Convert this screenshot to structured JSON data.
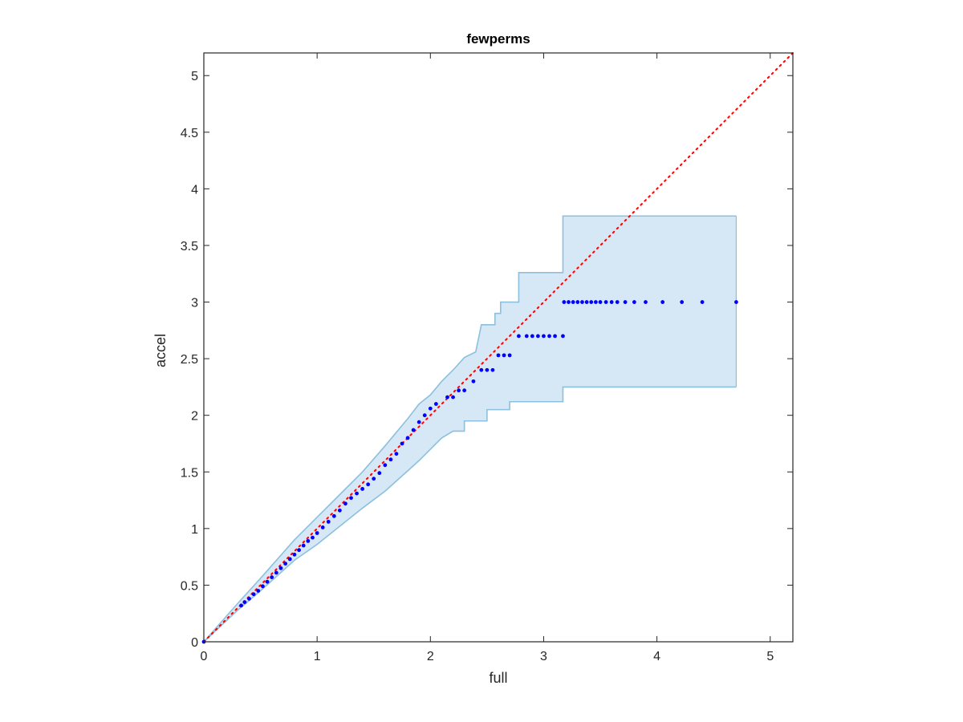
{
  "chart_data": {
    "type": "scatter",
    "title": "fewperms",
    "xlabel": "full",
    "ylabel": "accel",
    "xlim": [
      0,
      5.2
    ],
    "ylim": [
      0,
      5.2
    ],
    "xticks": [
      0,
      1,
      2,
      3,
      4,
      5
    ],
    "yticks": [
      0,
      0.5,
      1,
      1.5,
      2,
      2.5,
      3,
      3.5,
      4,
      4.5,
      5
    ],
    "xtick_labels": [
      "0",
      "1",
      "2",
      "3",
      "4",
      "5"
    ],
    "ytick_labels": [
      "0",
      "0.5",
      "1",
      "1.5",
      "2",
      "2.5",
      "3",
      "3.5",
      "4",
      "4.5",
      "5"
    ],
    "grid": false,
    "reference_line": {
      "from": [
        0,
        0
      ],
      "to": [
        5.2,
        5.2
      ],
      "style": "dotted",
      "color": "#ff0000"
    },
    "band": {
      "color": "#d6e8f5",
      "edge_color": "#8cc0dd",
      "upper": [
        [
          0,
          0
        ],
        [
          0.3,
          0.34
        ],
        [
          0.5,
          0.56
        ],
        [
          0.8,
          0.9
        ],
        [
          1.0,
          1.1
        ],
        [
          1.2,
          1.3
        ],
        [
          1.4,
          1.5
        ],
        [
          1.6,
          1.73
        ],
        [
          1.8,
          1.97
        ],
        [
          1.9,
          2.1
        ],
        [
          2.0,
          2.18
        ],
        [
          2.1,
          2.3
        ],
        [
          2.2,
          2.4
        ],
        [
          2.3,
          2.51
        ],
        [
          2.4,
          2.56
        ],
        [
          2.45,
          2.8
        ],
        [
          2.57,
          2.8
        ],
        [
          2.57,
          2.9
        ],
        [
          2.62,
          2.9
        ],
        [
          2.62,
          3.0
        ],
        [
          2.78,
          3.0
        ],
        [
          2.78,
          3.26
        ],
        [
          3.17,
          3.26
        ],
        [
          3.17,
          3.76
        ],
        [
          4.7,
          3.76
        ]
      ],
      "lower": [
        [
          0,
          0
        ],
        [
          0.3,
          0.28
        ],
        [
          0.5,
          0.45
        ],
        [
          0.8,
          0.72
        ],
        [
          1.0,
          0.86
        ],
        [
          1.2,
          1.02
        ],
        [
          1.4,
          1.18
        ],
        [
          1.6,
          1.33
        ],
        [
          1.8,
          1.51
        ],
        [
          1.9,
          1.6
        ],
        [
          2.0,
          1.7
        ],
        [
          2.1,
          1.8
        ],
        [
          2.2,
          1.86
        ],
        [
          2.3,
          1.86
        ],
        [
          2.3,
          1.95
        ],
        [
          2.5,
          1.95
        ],
        [
          2.5,
          2.05
        ],
        [
          2.7,
          2.05
        ],
        [
          2.7,
          2.12
        ],
        [
          3.17,
          2.12
        ],
        [
          3.17,
          2.25
        ],
        [
          4.7,
          2.25
        ]
      ]
    },
    "series": [
      {
        "color": "#0000ff",
        "points": [
          [
            0,
            0
          ],
          [
            0.33,
            0.32
          ],
          [
            0.36,
            0.35
          ],
          [
            0.4,
            0.38
          ],
          [
            0.44,
            0.42
          ],
          [
            0.48,
            0.45
          ],
          [
            0.52,
            0.49
          ],
          [
            0.56,
            0.53
          ],
          [
            0.6,
            0.57
          ],
          [
            0.64,
            0.61
          ],
          [
            0.68,
            0.65
          ],
          [
            0.72,
            0.69
          ],
          [
            0.76,
            0.73
          ],
          [
            0.8,
            0.77
          ],
          [
            0.84,
            0.81
          ],
          [
            0.88,
            0.85
          ],
          [
            0.92,
            0.89
          ],
          [
            0.96,
            0.92
          ],
          [
            1.0,
            0.96
          ],
          [
            1.05,
            1.01
          ],
          [
            1.1,
            1.06
          ],
          [
            1.15,
            1.11
          ],
          [
            1.2,
            1.16
          ],
          [
            1.25,
            1.22
          ],
          [
            1.3,
            1.27
          ],
          [
            1.35,
            1.31
          ],
          [
            1.4,
            1.35
          ],
          [
            1.45,
            1.39
          ],
          [
            1.5,
            1.44
          ],
          [
            1.55,
            1.49
          ],
          [
            1.6,
            1.56
          ],
          [
            1.65,
            1.61
          ],
          [
            1.7,
            1.66
          ],
          [
            1.75,
            1.75
          ],
          [
            1.8,
            1.8
          ],
          [
            1.85,
            1.87
          ],
          [
            1.9,
            1.94
          ],
          [
            1.95,
            2.0
          ],
          [
            2.0,
            2.06
          ],
          [
            2.05,
            2.1
          ],
          [
            2.15,
            2.16
          ],
          [
            2.2,
            2.16
          ],
          [
            2.25,
            2.22
          ],
          [
            2.3,
            2.22
          ],
          [
            2.38,
            2.3
          ],
          [
            2.45,
            2.4
          ],
          [
            2.5,
            2.4
          ],
          [
            2.55,
            2.4
          ],
          [
            2.6,
            2.53
          ],
          [
            2.65,
            2.53
          ],
          [
            2.7,
            2.53
          ],
          [
            2.78,
            2.7
          ],
          [
            2.85,
            2.7
          ],
          [
            2.9,
            2.7
          ],
          [
            2.95,
            2.7
          ],
          [
            3.0,
            2.7
          ],
          [
            3.05,
            2.7
          ],
          [
            3.1,
            2.7
          ],
          [
            3.17,
            2.7
          ],
          [
            3.18,
            3.0
          ],
          [
            3.22,
            3.0
          ],
          [
            3.26,
            3.0
          ],
          [
            3.3,
            3.0
          ],
          [
            3.34,
            3.0
          ],
          [
            3.38,
            3.0
          ],
          [
            3.42,
            3.0
          ],
          [
            3.46,
            3.0
          ],
          [
            3.5,
            3.0
          ],
          [
            3.55,
            3.0
          ],
          [
            3.6,
            3.0
          ],
          [
            3.65,
            3.0
          ],
          [
            3.72,
            3.0
          ],
          [
            3.8,
            3.0
          ],
          [
            3.9,
            3.0
          ],
          [
            4.05,
            3.0
          ],
          [
            4.22,
            3.0
          ],
          [
            4.4,
            3.0
          ],
          [
            4.7,
            3.0
          ]
        ]
      }
    ]
  }
}
